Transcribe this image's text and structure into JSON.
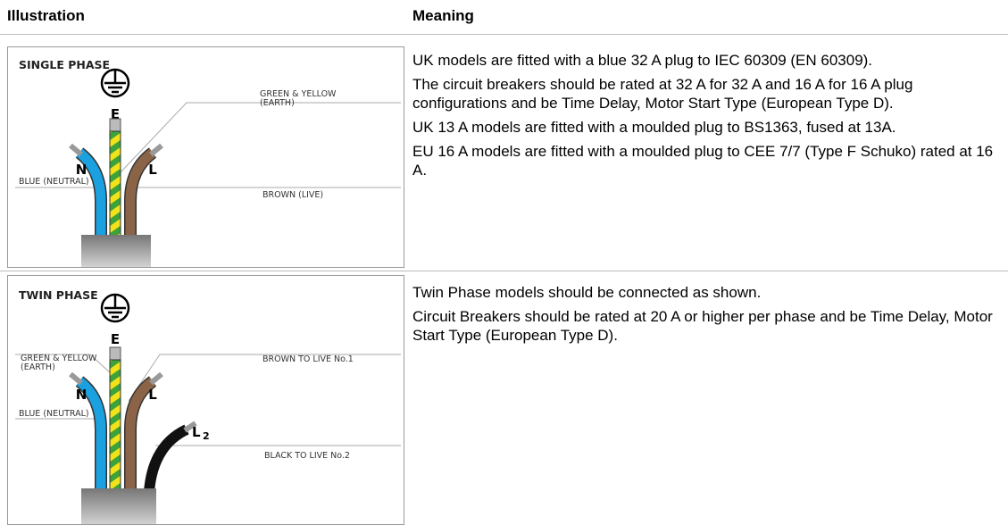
{
  "header": {
    "illustration": "Illustration",
    "meaning": "Meaning"
  },
  "rows": [
    {
      "illustration": {
        "title": "SINGLE PHASE",
        "earth_letter": "E",
        "neutral_letter": "N",
        "live_letter": "L",
        "earth_label": [
          "GREEN & YELLOW",
          "(EARTH)"
        ],
        "neutral_label": "BLUE (NEUTRAL)",
        "live_label": "BROWN (LIVE)"
      },
      "meaning": [
        "UK models are fitted with a blue 32 A plug to IEC 60309 (EN 60309).",
        "The circuit breakers should be rated at 32 A for 32 A and 16 A for 16 A plug configurations and be Time Delay, Motor Start Type (European Type D).",
        "UK 13 A models are fitted with a moulded plug to BS1363, fused at 13A.",
        "EU 16 A models are fitted with a moulded plug to CEE 7/7 (Type F Schuko) rated at 16 A."
      ]
    },
    {
      "illustration": {
        "title": "TWIN PHASE",
        "earth_letter": "E",
        "neutral_letter": "N",
        "live1_letter": "L",
        "live2_letter": "L",
        "live2_subscript": "2",
        "earth_label": [
          "GREEN & YELLOW",
          "(EARTH)"
        ],
        "live1_label": "BROWN TO LIVE No.1",
        "neutral_label": "BLUE (NEUTRAL)",
        "live2_label": "BLACK TO LIVE No.2"
      },
      "meaning": [
        "Twin Phase models should be connected as shown.",
        "Circuit Breakers should be rated at 20 A or higher per phase and be Time Delay, Motor Start Type (European Type D)."
      ]
    }
  ]
}
